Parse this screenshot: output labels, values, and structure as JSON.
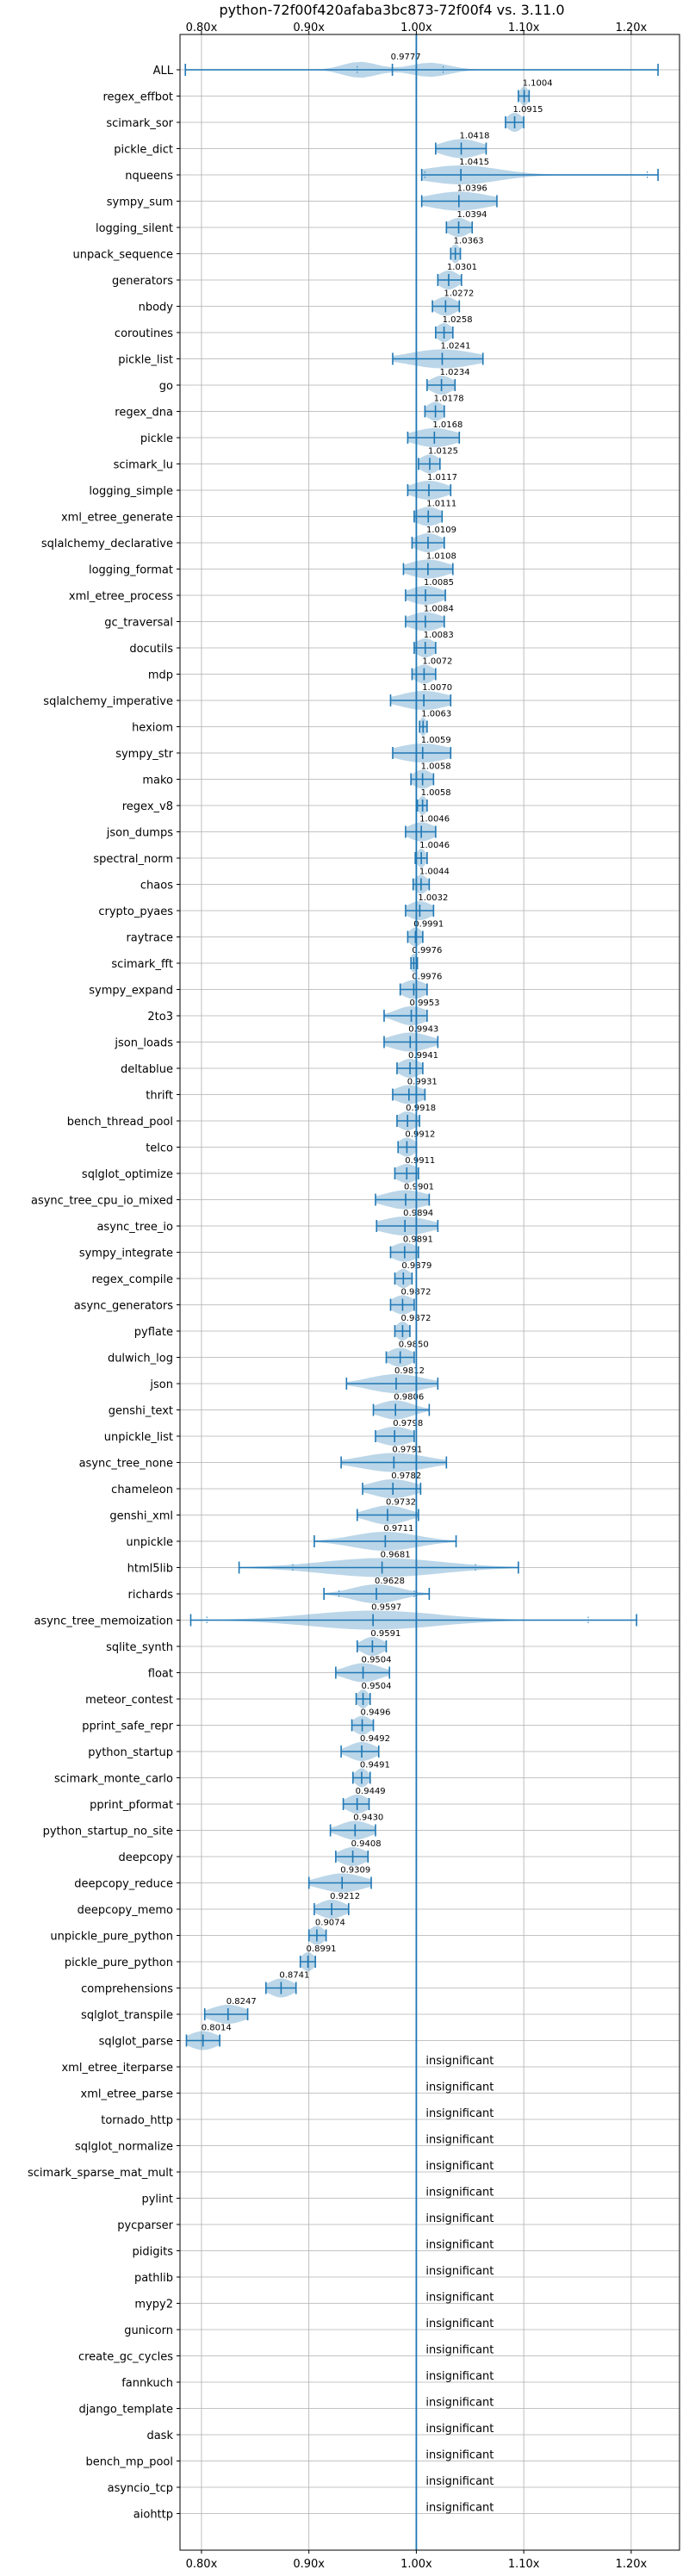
{
  "chart_data": {
    "type": "violin",
    "title": "python-72f00f420afaba3bc873-72f00f4 vs. 3.11.0",
    "xlim": [
      0.78,
      1.245
    ],
    "xticks": [
      0.8,
      0.9,
      1.0,
      1.1,
      1.2
    ],
    "xtick_labels": [
      "0.80x",
      "0.90x",
      "1.00x",
      "1.10x",
      "1.20x"
    ],
    "reference_line": 1.0,
    "grid": true,
    "insignificant_text": "insignificant",
    "benchmarks": [
      {
        "name": "ALL",
        "value": 0.9777,
        "label": "0.9777",
        "lo": 0.785,
        "hi": 1.225,
        "spread": 0.02,
        "inner": [
          0.945,
          1.025
        ],
        "shape": "bi"
      },
      {
        "name": "regex_effbot",
        "value": 1.1004,
        "label": "1.1004",
        "lo": 1.095,
        "hi": 1.105,
        "spread": 0.004
      },
      {
        "name": "scimark_sor",
        "value": 1.0915,
        "label": "1.0915",
        "lo": 1.083,
        "hi": 1.1,
        "spread": 0.007
      },
      {
        "name": "pickle_dict",
        "value": 1.0418,
        "label": "1.0418",
        "lo": 1.018,
        "hi": 1.065,
        "spread": 0.018
      },
      {
        "name": "nqueens",
        "value": 1.0415,
        "label": "1.0415",
        "lo": 1.005,
        "hi": 1.225,
        "spread": 0.035,
        "inner": [
          1.008,
          1.215
        ]
      },
      {
        "name": "sympy_sum",
        "value": 1.0396,
        "label": "1.0396",
        "lo": 1.005,
        "hi": 1.075,
        "spread": 0.028
      },
      {
        "name": "logging_silent",
        "value": 1.0394,
        "label": "1.0394",
        "lo": 1.028,
        "hi": 1.052,
        "spread": 0.01
      },
      {
        "name": "unpack_sequence",
        "value": 1.0363,
        "label": "1.0363",
        "lo": 1.032,
        "hi": 1.041,
        "spread": 0.004
      },
      {
        "name": "generators",
        "value": 1.0301,
        "label": "1.0301",
        "lo": 1.02,
        "hi": 1.042,
        "spread": 0.009
      },
      {
        "name": "nbody",
        "value": 1.0272,
        "label": "1.0272",
        "lo": 1.015,
        "hi": 1.04,
        "spread": 0.01
      },
      {
        "name": "coroutines",
        "value": 1.0258,
        "label": "1.0258",
        "lo": 1.018,
        "hi": 1.034,
        "spread": 0.007
      },
      {
        "name": "pickle_list",
        "value": 1.0241,
        "label": "1.0241",
        "lo": 0.978,
        "hi": 1.062,
        "spread": 0.03
      },
      {
        "name": "go",
        "value": 1.0234,
        "label": "1.0234",
        "lo": 1.01,
        "hi": 1.036,
        "spread": 0.01
      },
      {
        "name": "regex_dna",
        "value": 1.0178,
        "label": "1.0178",
        "lo": 1.008,
        "hi": 1.026,
        "spread": 0.008
      },
      {
        "name": "pickle",
        "value": 1.0168,
        "label": "1.0168",
        "lo": 0.992,
        "hi": 1.04,
        "spread": 0.02
      },
      {
        "name": "scimark_lu",
        "value": 1.0125,
        "label": "1.0125",
        "lo": 1.002,
        "hi": 1.022,
        "spread": 0.009
      },
      {
        "name": "logging_simple",
        "value": 1.0117,
        "label": "1.0117",
        "lo": 0.992,
        "hi": 1.032,
        "spread": 0.016
      },
      {
        "name": "xml_etree_generate",
        "value": 1.0111,
        "label": "1.0111",
        "lo": 0.998,
        "hi": 1.024,
        "spread": 0.012
      },
      {
        "name": "sqlalchemy_declarative",
        "value": 1.0109,
        "label": "1.0109",
        "lo": 0.996,
        "hi": 1.026,
        "spread": 0.012
      },
      {
        "name": "logging_format",
        "value": 1.0108,
        "label": "1.0108",
        "lo": 0.988,
        "hi": 1.034,
        "spread": 0.018
      },
      {
        "name": "xml_etree_process",
        "value": 1.0085,
        "label": "1.0085",
        "lo": 0.99,
        "hi": 1.027,
        "spread": 0.015
      },
      {
        "name": "gc_traversal",
        "value": 1.0084,
        "label": "1.0084",
        "lo": 0.99,
        "hi": 1.026,
        "spread": 0.015
      },
      {
        "name": "docutils",
        "value": 1.0083,
        "label": "1.0083",
        "lo": 0.998,
        "hi": 1.018,
        "spread": 0.009
      },
      {
        "name": "mdp",
        "value": 1.0072,
        "label": "1.0072",
        "lo": 0.996,
        "hi": 1.018,
        "spread": 0.009
      },
      {
        "name": "sqlalchemy_imperative",
        "value": 1.007,
        "label": "1.0070",
        "lo": 0.976,
        "hi": 1.032,
        "spread": 0.022
      },
      {
        "name": "hexiom",
        "value": 1.0063,
        "label": "1.0063",
        "lo": 1.003,
        "hi": 1.01,
        "spread": 0.003
      },
      {
        "name": "sympy_str",
        "value": 1.0059,
        "label": "1.0059",
        "lo": 0.978,
        "hi": 1.032,
        "spread": 0.024
      },
      {
        "name": "mako",
        "value": 1.0058,
        "label": "1.0058",
        "lo": 0.995,
        "hi": 1.016,
        "spread": 0.009
      },
      {
        "name": "regex_v8",
        "value": 1.0058,
        "label": "1.0058",
        "lo": 1.001,
        "hi": 1.01,
        "spread": 0.004
      },
      {
        "name": "json_dumps",
        "value": 1.0046,
        "label": "1.0046",
        "lo": 0.99,
        "hi": 1.018,
        "spread": 0.012
      },
      {
        "name": "spectral_norm",
        "value": 1.0046,
        "label": "1.0046",
        "lo": 0.999,
        "hi": 1.01,
        "spread": 0.004
      },
      {
        "name": "chaos",
        "value": 1.0044,
        "label": "1.0044",
        "lo": 0.997,
        "hi": 1.012,
        "spread": 0.006
      },
      {
        "name": "crypto_pyaes",
        "value": 1.0032,
        "label": "1.0032",
        "lo": 0.99,
        "hi": 1.016,
        "spread": 0.011
      },
      {
        "name": "raytrace",
        "value": 0.9991,
        "label": "0.9991",
        "lo": 0.992,
        "hi": 1.006,
        "spread": 0.006
      },
      {
        "name": "scimark_fft",
        "value": 0.9976,
        "label": "0.9976",
        "lo": 0.995,
        "hi": 1.001,
        "spread": 0.003
      },
      {
        "name": "sympy_expand",
        "value": 0.9976,
        "label": "0.9976",
        "lo": 0.985,
        "hi": 1.01,
        "spread": 0.011
      },
      {
        "name": "2to3",
        "value": 0.9953,
        "label": "0.9953",
        "lo": 0.97,
        "hi": 1.01,
        "spread": 0.014
      },
      {
        "name": "json_loads",
        "value": 0.9943,
        "label": "0.9943",
        "lo": 0.97,
        "hi": 1.02,
        "spread": 0.018
      },
      {
        "name": "deltablue",
        "value": 0.9941,
        "label": "0.9941",
        "lo": 0.982,
        "hi": 1.006,
        "spread": 0.01
      },
      {
        "name": "thrift",
        "value": 0.9931,
        "label": "0.9931",
        "lo": 0.978,
        "hi": 1.008,
        "spread": 0.013
      },
      {
        "name": "bench_thread_pool",
        "value": 0.9918,
        "label": "0.9918",
        "lo": 0.982,
        "hi": 1.003,
        "spread": 0.009
      },
      {
        "name": "telco",
        "value": 0.9912,
        "label": "0.9912",
        "lo": 0.983,
        "hi": 1.0,
        "spread": 0.008
      },
      {
        "name": "sqlglot_optimize",
        "value": 0.9911,
        "label": "0.9911",
        "lo": 0.98,
        "hi": 1.002,
        "spread": 0.01
      },
      {
        "name": "async_tree_cpu_io_mixed",
        "value": 0.9901,
        "label": "0.9901",
        "lo": 0.962,
        "hi": 1.012,
        "spread": 0.02
      },
      {
        "name": "async_tree_io",
        "value": 0.9894,
        "label": "0.9894",
        "lo": 0.963,
        "hi": 1.02,
        "spread": 0.022
      },
      {
        "name": "sympy_integrate",
        "value": 0.9891,
        "label": "0.9891",
        "lo": 0.976,
        "hi": 1.002,
        "spread": 0.012
      },
      {
        "name": "regex_compile",
        "value": 0.9879,
        "label": "0.9879",
        "lo": 0.98,
        "hi": 0.996,
        "spread": 0.007
      },
      {
        "name": "async_generators",
        "value": 0.9872,
        "label": "0.9872",
        "lo": 0.976,
        "hi": 0.998,
        "spread": 0.01
      },
      {
        "name": "pyflate",
        "value": 0.9872,
        "label": "0.9872",
        "lo": 0.98,
        "hi": 0.994,
        "spread": 0.006
      },
      {
        "name": "dulwich_log",
        "value": 0.985,
        "label": "0.9850",
        "lo": 0.972,
        "hi": 0.998,
        "spread": 0.011
      },
      {
        "name": "json",
        "value": 0.9812,
        "label": "0.9812",
        "lo": 0.935,
        "hi": 1.02,
        "spread": 0.025
      },
      {
        "name": "genshi_text",
        "value": 0.9806,
        "label": "0.9806",
        "lo": 0.96,
        "hi": 1.012,
        "spread": 0.016
      },
      {
        "name": "unpickle_list",
        "value": 0.9798,
        "label": "0.9798",
        "lo": 0.962,
        "hi": 0.998,
        "spread": 0.016
      },
      {
        "name": "async_tree_none",
        "value": 0.9791,
        "label": "0.9791",
        "lo": 0.93,
        "hi": 1.028,
        "spread": 0.03
      },
      {
        "name": "chameleon",
        "value": 0.9782,
        "label": "0.9782",
        "lo": 0.95,
        "hi": 1.004,
        "spread": 0.02
      },
      {
        "name": "genshi_xml",
        "value": 0.9732,
        "label": "0.9732",
        "lo": 0.945,
        "hi": 1.002,
        "spread": 0.018
      },
      {
        "name": "unpickle",
        "value": 0.9711,
        "label": "0.9711",
        "lo": 0.905,
        "hi": 1.037,
        "spread": 0.03
      },
      {
        "name": "html5lib",
        "value": 0.9681,
        "label": "0.9681",
        "lo": 0.835,
        "hi": 1.095,
        "spread": 0.055,
        "inner": [
          0.885,
          1.055
        ]
      },
      {
        "name": "richards",
        "value": 0.9628,
        "label": "0.9628",
        "lo": 0.914,
        "hi": 1.012,
        "spread": 0.022,
        "inner": [
          0.928,
          0.998
        ]
      },
      {
        "name": "async_tree_memoization",
        "value": 0.9597,
        "label": "0.9597",
        "lo": 0.79,
        "hi": 1.205,
        "spread": 0.06,
        "inner": [
          0.805,
          1.16
        ]
      },
      {
        "name": "sqlite_synth",
        "value": 0.9591,
        "label": "0.9591",
        "lo": 0.945,
        "hi": 0.972,
        "spread": 0.01
      },
      {
        "name": "float",
        "value": 0.9504,
        "label": "0.9504",
        "lo": 0.925,
        "hi": 0.975,
        "spread": 0.016
      },
      {
        "name": "meteor_contest",
        "value": 0.9504,
        "label": "0.9504",
        "lo": 0.944,
        "hi": 0.957,
        "spread": 0.005
      },
      {
        "name": "pprint_safe_repr",
        "value": 0.9496,
        "label": "0.9496",
        "lo": 0.94,
        "hi": 0.96,
        "spread": 0.008
      },
      {
        "name": "python_startup",
        "value": 0.9492,
        "label": "0.9492",
        "lo": 0.93,
        "hi": 0.965,
        "spread": 0.012
      },
      {
        "name": "scimark_monte_carlo",
        "value": 0.9491,
        "label": "0.9491",
        "lo": 0.941,
        "hi": 0.957,
        "spread": 0.006
      },
      {
        "name": "pprint_pformat",
        "value": 0.9449,
        "label": "0.9449",
        "lo": 0.932,
        "hi": 0.956,
        "spread": 0.01
      },
      {
        "name": "python_startup_no_site",
        "value": 0.943,
        "label": "0.9430",
        "lo": 0.92,
        "hi": 0.962,
        "spread": 0.014
      },
      {
        "name": "deepcopy",
        "value": 0.9408,
        "label": "0.9408",
        "lo": 0.925,
        "hi": 0.955,
        "spread": 0.012
      },
      {
        "name": "deepcopy_reduce",
        "value": 0.9309,
        "label": "0.9309",
        "lo": 0.9,
        "hi": 0.958,
        "spread": 0.02
      },
      {
        "name": "deepcopy_memo",
        "value": 0.9212,
        "label": "0.9212",
        "lo": 0.905,
        "hi": 0.937,
        "spread": 0.012
      },
      {
        "name": "unpickle_pure_python",
        "value": 0.9074,
        "label": "0.9074",
        "lo": 0.9,
        "hi": 0.916,
        "spread": 0.007
      },
      {
        "name": "pickle_pure_python",
        "value": 0.8991,
        "label": "0.8991",
        "lo": 0.892,
        "hi": 0.906,
        "spread": 0.006
      },
      {
        "name": "comprehensions",
        "value": 0.8741,
        "label": "0.8741",
        "lo": 0.86,
        "hi": 0.888,
        "spread": 0.011
      },
      {
        "name": "sqlglot_transpile",
        "value": 0.8247,
        "label": "0.8247",
        "lo": 0.803,
        "hi": 0.843,
        "spread": 0.016
      },
      {
        "name": "sqlglot_parse",
        "value": 0.8014,
        "label": "0.8014",
        "lo": 0.786,
        "hi": 0.817,
        "spread": 0.013
      },
      {
        "name": "xml_etree_iterparse",
        "insignificant": true
      },
      {
        "name": "xml_etree_parse",
        "insignificant": true
      },
      {
        "name": "tornado_http",
        "insignificant": true
      },
      {
        "name": "sqlglot_normalize",
        "insignificant": true
      },
      {
        "name": "scimark_sparse_mat_mult",
        "insignificant": true
      },
      {
        "name": "pylint",
        "insignificant": true
      },
      {
        "name": "pycparser",
        "insignificant": true
      },
      {
        "name": "pidigits",
        "insignificant": true
      },
      {
        "name": "pathlib",
        "insignificant": true
      },
      {
        "name": "mypy2",
        "insignificant": true
      },
      {
        "name": "gunicorn",
        "insignificant": true
      },
      {
        "name": "create_gc_cycles",
        "insignificant": true
      },
      {
        "name": "fannkuch",
        "insignificant": true
      },
      {
        "name": "django_template",
        "insignificant": true
      },
      {
        "name": "dask",
        "insignificant": true
      },
      {
        "name": "bench_mp_pool",
        "insignificant": true
      },
      {
        "name": "asyncio_tcp",
        "insignificant": true
      },
      {
        "name": "aiohttp",
        "insignificant": true
      }
    ]
  },
  "colors": {
    "accent": "#1f77b4",
    "grid": "#b0b0b0"
  }
}
